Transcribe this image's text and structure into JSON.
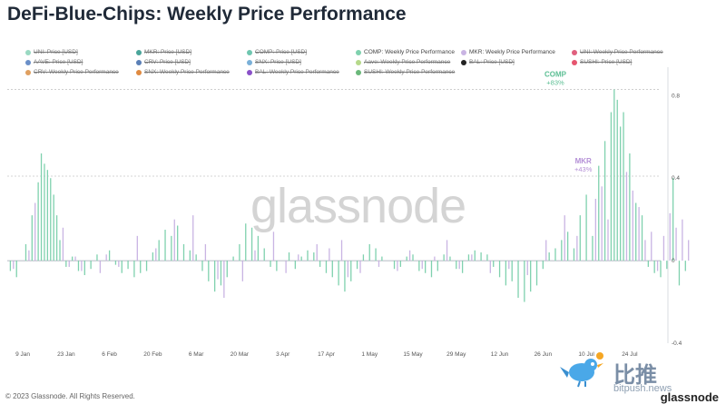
{
  "title": "DeFi-Blue-Chips: Weekly Price Performance",
  "footer": "© 2023 Glassnode. All Rights Reserved.",
  "brand": "glassnode",
  "watermark": "glassnode",
  "overlay": {
    "cn_text": "比推",
    "url_text": "bitpush.news"
  },
  "colors": {
    "comp": "#7fd1ae",
    "mkr": "#c9b4e3",
    "comp_label": "#5cbf94",
    "mkr_label": "#b48fd6",
    "grid": "#e5e7eb",
    "zero": "#9ca3af"
  },
  "legend": [
    {
      "label": "UNI: Price [USD]",
      "color": "#9ad9c2",
      "active": false
    },
    {
      "label": "MKR: Price [USD]",
      "color": "#4aa59a",
      "active": false
    },
    {
      "label": "COMP: Price [USD]",
      "color": "#6fc6b0",
      "active": false
    },
    {
      "label": "COMP: Weekly Price Performance",
      "color": "#7fd1ae",
      "active": true
    },
    {
      "label": "MKR: Weekly Price Performance",
      "color": "#c9b4e3",
      "active": true
    },
    {
      "label": "UNI: Weekly Price Performance",
      "color": "#e0607e",
      "active": false
    },
    {
      "label": "AAVE: Price [USD]",
      "color": "#6a8fc8",
      "active": false
    },
    {
      "label": "CRV: Price [USD]",
      "color": "#5a7fb6",
      "active": false
    },
    {
      "label": "SNX: Price [USD]",
      "color": "#7ab0d8",
      "active": false
    },
    {
      "label": "Aave: Weekly Price Performance",
      "color": "#b6d98a",
      "active": false
    },
    {
      "label": "BAL: Price [USD]",
      "color": "#222222",
      "active": false
    },
    {
      "label": "SUSHI: Price [USD]",
      "color": "#e6556f",
      "active": false
    },
    {
      "label": "CRV: Weekly Price Performance",
      "color": "#e0a060",
      "active": false
    },
    {
      "label": "SNX: Weekly Price Performance",
      "color": "#e08a40",
      "active": false
    },
    {
      "label": "BAL: Weekly Price Performance",
      "color": "#8a50c8",
      "active": false
    },
    {
      "label": "SUSHI: Weekly Price Performance",
      "color": "#6ab87a",
      "active": false
    }
  ],
  "chart_data": {
    "type": "bar",
    "title": "DeFi-Blue-Chips: Weekly Price Performance",
    "x_tick_labels": [
      "9 Jan",
      "23 Jan",
      "6 Feb",
      "20 Feb",
      "6 Mar",
      "20 Mar",
      "3 Apr",
      "17 Apr",
      "1 May",
      "15 May",
      "29 May",
      "12 Jun",
      "26 Jun",
      "10 Jul",
      "24 Jul"
    ],
    "y_tick_labels": [
      "0.8",
      "0.4",
      "0",
      "-0.4"
    ],
    "ylim": [
      -0.4,
      0.85
    ],
    "x_range_days": [
      -5,
      206
    ],
    "grid": false,
    "reference_lines": [
      {
        "y": 0.83
      },
      {
        "y": 0.41
      }
    ],
    "annotations": [
      {
        "series": "COMP",
        "name_label": "COMP",
        "value_label": "+83%",
        "x_day": 172,
        "y": 0.83
      },
      {
        "series": "MKR",
        "name_label": "MKR",
        "value_label": "+43%",
        "x_day": 181,
        "y": 0.41
      }
    ],
    "series": [
      {
        "name": "COMP: Weekly Price Performance",
        "key": "comp",
        "points": [
          [
            -4,
            -0.05
          ],
          [
            -2,
            -0.08
          ],
          [
            1,
            0.08
          ],
          [
            3,
            0.22
          ],
          [
            5,
            0.38
          ],
          [
            6,
            0.52
          ],
          [
            7,
            0.47
          ],
          [
            8,
            0.44
          ],
          [
            9,
            0.4
          ],
          [
            10,
            0.32
          ],
          [
            11,
            0.22
          ],
          [
            12,
            0.1
          ],
          [
            14,
            -0.03
          ],
          [
            16,
            0.02
          ],
          [
            18,
            -0.05
          ],
          [
            20,
            -0.07
          ],
          [
            22,
            -0.04
          ],
          [
            24,
            0.03
          ],
          [
            28,
            0.05
          ],
          [
            30,
            -0.02
          ],
          [
            32,
            -0.06
          ],
          [
            34,
            -0.04
          ],
          [
            36,
            -0.08
          ],
          [
            38,
            -0.06
          ],
          [
            40,
            -0.05
          ],
          [
            42,
            0.04
          ],
          [
            44,
            0.1
          ],
          [
            46,
            0.15
          ],
          [
            48,
            0.12
          ],
          [
            50,
            0.17
          ],
          [
            52,
            0.08
          ],
          [
            54,
            0.05
          ],
          [
            56,
            0.03
          ],
          [
            58,
            -0.05
          ],
          [
            60,
            -0.1
          ],
          [
            62,
            -0.15
          ],
          [
            64,
            -0.12
          ],
          [
            66,
            -0.08
          ],
          [
            68,
            0.02
          ],
          [
            70,
            0.08
          ],
          [
            72,
            0.18
          ],
          [
            74,
            0.16
          ],
          [
            76,
            0.12
          ],
          [
            78,
            0.06
          ],
          [
            80,
            -0.03
          ],
          [
            82,
            -0.05
          ],
          [
            86,
            0.04
          ],
          [
            88,
            -0.04
          ],
          [
            90,
            0.02
          ],
          [
            92,
            0.05
          ],
          [
            94,
            0.04
          ],
          [
            96,
            -0.03
          ],
          [
            98,
            -0.06
          ],
          [
            100,
            -0.08
          ],
          [
            102,
            -0.12
          ],
          [
            104,
            -0.15
          ],
          [
            106,
            -0.1
          ],
          [
            108,
            -0.04
          ],
          [
            110,
            0.03
          ],
          [
            112,
            0.08
          ],
          [
            114,
            0.06
          ],
          [
            116,
            0.02
          ],
          [
            120,
            -0.04
          ],
          [
            122,
            -0.03
          ],
          [
            124,
            0.02
          ],
          [
            126,
            0.03
          ],
          [
            128,
            -0.05
          ],
          [
            130,
            -0.06
          ],
          [
            132,
            -0.08
          ],
          [
            134,
            -0.05
          ],
          [
            136,
            0.03
          ],
          [
            138,
            0.02
          ],
          [
            140,
            -0.04
          ],
          [
            142,
            -0.06
          ],
          [
            144,
            0.03
          ],
          [
            146,
            0.05
          ],
          [
            148,
            0.04
          ],
          [
            150,
            0.03
          ],
          [
            152,
            -0.03
          ],
          [
            154,
            -0.08
          ],
          [
            156,
            -0.12
          ],
          [
            158,
            -0.1
          ],
          [
            160,
            -0.18
          ],
          [
            162,
            -0.2
          ],
          [
            164,
            -0.15
          ],
          [
            166,
            -0.12
          ],
          [
            168,
            -0.04
          ],
          [
            170,
            0.04
          ],
          [
            172,
            0.06
          ],
          [
            174,
            0.1
          ],
          [
            176,
            0.14
          ],
          [
            178,
            0.06
          ],
          [
            180,
            0.22
          ],
          [
            182,
            0.32
          ],
          [
            184,
            0.12
          ],
          [
            186,
            0.46
          ],
          [
            188,
            0.58
          ],
          [
            190,
            0.72
          ],
          [
            191,
            0.83
          ],
          [
            192,
            0.78
          ],
          [
            193,
            0.65
          ],
          [
            194,
            0.72
          ],
          [
            196,
            0.52
          ],
          [
            198,
            0.28
          ],
          [
            200,
            0.22
          ],
          [
            202,
            -0.03
          ],
          [
            204,
            -0.06
          ],
          [
            206,
            -0.08
          ],
          [
            208,
            -0.04
          ],
          [
            210,
            0.4
          ],
          [
            212,
            -0.12
          ],
          [
            214,
            -0.05
          ]
        ]
      },
      {
        "name": "MKR: Weekly Price Performance",
        "key": "mkr",
        "points": [
          [
            -3,
            -0.04
          ],
          [
            2,
            0.05
          ],
          [
            4,
            0.28
          ],
          [
            13,
            0.16
          ],
          [
            15,
            -0.03
          ],
          [
            17,
            0.02
          ],
          [
            19,
            -0.05
          ],
          [
            25,
            -0.06
          ],
          [
            27,
            0.03
          ],
          [
            31,
            -0.03
          ],
          [
            37,
            0.12
          ],
          [
            43,
            0.06
          ],
          [
            49,
            0.2
          ],
          [
            55,
            0.22
          ],
          [
            59,
            0.08
          ],
          [
            63,
            -0.09
          ],
          [
            65,
            -0.18
          ],
          [
            71,
            -0.1
          ],
          [
            75,
            0.05
          ],
          [
            81,
            0.14
          ],
          [
            85,
            -0.06
          ],
          [
            89,
            0.03
          ],
          [
            95,
            0.08
          ],
          [
            99,
            0.06
          ],
          [
            103,
            0.1
          ],
          [
            105,
            -0.08
          ],
          [
            109,
            -0.06
          ],
          [
            115,
            -0.03
          ],
          [
            121,
            -0.05
          ],
          [
            125,
            0.05
          ],
          [
            129,
            -0.04
          ],
          [
            133,
            0.02
          ],
          [
            137,
            0.1
          ],
          [
            141,
            -0.04
          ],
          [
            145,
            0.03
          ],
          [
            151,
            -0.06
          ],
          [
            157,
            -0.04
          ],
          [
            163,
            -0.07
          ],
          [
            169,
            0.1
          ],
          [
            175,
            0.22
          ],
          [
            179,
            0.12
          ],
          [
            185,
            0.3
          ],
          [
            187,
            0.36
          ],
          [
            189,
            0.2
          ],
          [
            195,
            0.43
          ],
          [
            197,
            0.34
          ],
          [
            199,
            0.26
          ],
          [
            201,
            0.1
          ],
          [
            203,
            0.14
          ],
          [
            205,
            -0.05
          ],
          [
            207,
            0.12
          ],
          [
            209,
            0.23
          ],
          [
            211,
            0.16
          ],
          [
            213,
            0.2
          ],
          [
            215,
            0.1
          ]
        ]
      }
    ]
  }
}
